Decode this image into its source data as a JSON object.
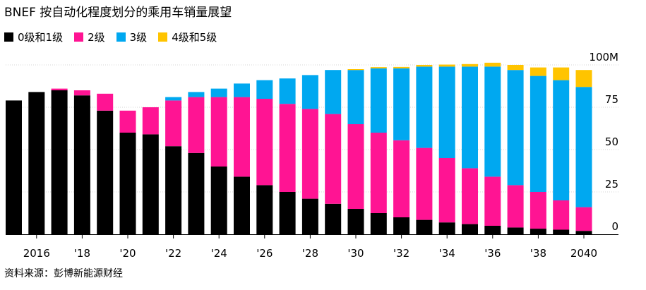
{
  "title": "BNEF 按自动化程度划分的乘用车销量展望",
  "source": "资料来源：彭博新能源财经",
  "chart_data": {
    "type": "bar",
    "stacked": true,
    "title": "BNEF 按自动化程度划分的乘用车销量展望",
    "ylim": [
      0,
      100
    ],
    "y_unit": "M",
    "y_ticks": [
      "100M",
      "75",
      "50",
      "25",
      "0"
    ],
    "y_tick_values": [
      100,
      75,
      50,
      25,
      0
    ],
    "y_axis_side": "right",
    "grid": true,
    "legend_position": "top-left",
    "categories": [
      2015,
      2016,
      2017,
      2018,
      2019,
      2020,
      2021,
      2022,
      2023,
      2024,
      2025,
      2026,
      2027,
      2028,
      2029,
      2030,
      2031,
      2032,
      2033,
      2034,
      2035,
      2036,
      2037,
      2038,
      2039,
      2040
    ],
    "x_tick_labels": [
      {
        "year": 2016,
        "label": "2016"
      },
      {
        "year": 2018,
        "label": "'18"
      },
      {
        "year": 2020,
        "label": "'20"
      },
      {
        "year": 2022,
        "label": "'22"
      },
      {
        "year": 2024,
        "label": "'24"
      },
      {
        "year": 2026,
        "label": "'26"
      },
      {
        "year": 2028,
        "label": "'28"
      },
      {
        "year": 2030,
        "label": "'30"
      },
      {
        "year": 2032,
        "label": "'32"
      },
      {
        "year": 2034,
        "label": "'34"
      },
      {
        "year": 2036,
        "label": "'36"
      },
      {
        "year": 2038,
        "label": "'38"
      },
      {
        "year": 2040,
        "label": "2040"
      }
    ],
    "series": [
      {
        "name": "0级和1级",
        "color": "#000000",
        "values": [
          79,
          84,
          85,
          82,
          73,
          60,
          59,
          52,
          48,
          40,
          34,
          29,
          25,
          21,
          18,
          15,
          12.5,
          10,
          8.5,
          7,
          6,
          5,
          4,
          3.3,
          2.7,
          2
        ]
      },
      {
        "name": "2级",
        "color": "#ff1493",
        "values": [
          0,
          0,
          1,
          3,
          10,
          13,
          16,
          27,
          33,
          41,
          47,
          51,
          52,
          53,
          53,
          50,
          47.5,
          45.5,
          42.5,
          38,
          33,
          29,
          25,
          21.7,
          17.3,
          14
        ]
      },
      {
        "name": "3级",
        "color": "#00a8f0",
        "values": [
          0,
          0,
          0,
          0,
          0,
          0,
          0,
          2,
          3,
          5,
          8,
          11,
          15,
          20,
          26,
          32,
          38,
          42.5,
          48,
          54,
          60,
          65,
          68,
          68.5,
          71,
          71
        ]
      },
      {
        "name": "4级和5级",
        "color": "#ffc400",
        "values": [
          0,
          0,
          0,
          0,
          0,
          0,
          0,
          0,
          0,
          0,
          0,
          0,
          0,
          0,
          0,
          0.5,
          0.7,
          0.8,
          1,
          1.2,
          1.5,
          2.3,
          3,
          5,
          7.5,
          10
        ]
      }
    ]
  }
}
